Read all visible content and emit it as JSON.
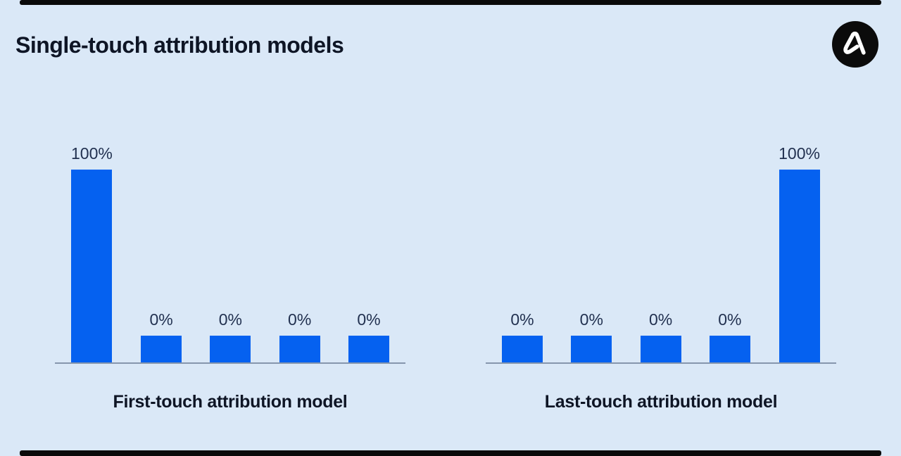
{
  "page": {
    "title": "Single-touch attribution models"
  },
  "logo": {
    "icon": "stylized-a-logo",
    "background": "#0b0b0b",
    "glyph_color": "#ffffff"
  },
  "colors": {
    "background": "#dae8f7",
    "bar": "#0561f0",
    "value_label_text": "#223150",
    "title_text": "#0e1525",
    "axis_line": "#8696ad",
    "edge_strips": "#0a0a0a"
  },
  "chart_data": [
    {
      "type": "bar",
      "title": "First-touch attribution model",
      "values": [
        100,
        0,
        0,
        0,
        0
      ],
      "value_labels": [
        "100%",
        "0%",
        "0%",
        "0%",
        "0%"
      ],
      "ylim": [
        0,
        100
      ],
      "grid": false,
      "legend": false,
      "axis": "baseline-only"
    },
    {
      "type": "bar",
      "title": "Last-touch attribution model",
      "values": [
        0,
        0,
        0,
        0,
        100
      ],
      "value_labels": [
        "0%",
        "0%",
        "0%",
        "0%",
        "100%"
      ],
      "ylim": [
        0,
        100
      ],
      "grid": false,
      "legend": false,
      "axis": "baseline-only"
    }
  ]
}
